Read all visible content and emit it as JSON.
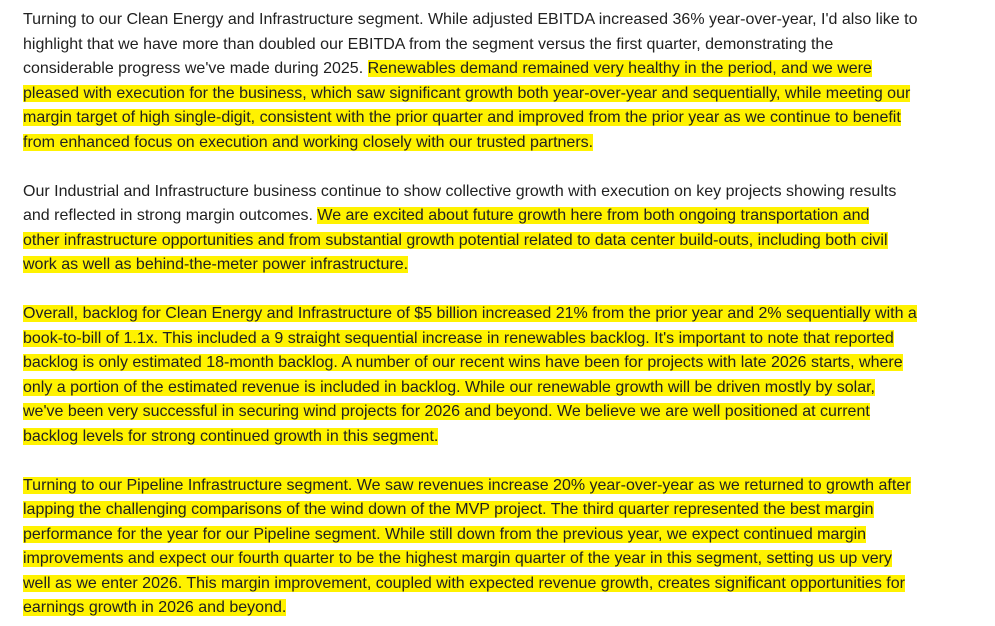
{
  "paragraphs": [
    {
      "lines": [
        [
          {
            "text": "Turning to our Clean Energy and Infrastructure segment. While adjusted EBITDA increased 36% year-over-year, I'd also like to",
            "highlight": false
          }
        ],
        [
          {
            "text": "highlight that we have more than doubled our EBITDA from the segment versus the first quarter, demonstrating the",
            "highlight": false
          }
        ],
        [
          {
            "text": "considerable progress we've made during 2025. ",
            "highlight": false
          },
          {
            "text": "Renewables demand remained very healthy in the period, and we were",
            "highlight": true
          }
        ],
        [
          {
            "text": "pleased with execution for the business, which saw significant growth both year-over-year and sequentially, while meeting our",
            "highlight": true
          }
        ],
        [
          {
            "text": "margin target of high single-digit, consistent with the prior quarter and improved from the prior year as we continue to benefit",
            "highlight": true
          }
        ],
        [
          {
            "text": "from enhanced focus on execution and working closely with our trusted partners.",
            "highlight": true
          }
        ]
      ]
    },
    {
      "lines": [
        [
          {
            "text": "Our Industrial and Infrastructure business continue to show collective growth with execution on key projects showing results",
            "highlight": false
          }
        ],
        [
          {
            "text": "and reflected in strong margin outcomes. ",
            "highlight": false
          },
          {
            "text": "We are excited about future growth here from both ongoing transportation and",
            "highlight": true
          }
        ],
        [
          {
            "text": "other infrastructure opportunities and from substantial growth potential related to data center build-outs, including both civil",
            "highlight": true
          }
        ],
        [
          {
            "text": "work as well as behind-the-meter power infrastructure.",
            "highlight": true
          }
        ]
      ]
    },
    {
      "lines": [
        [
          {
            "text": "Overall, backlog for Clean Energy and Infrastructure of $5 billion increased 21% from the prior year and 2% sequentially with a",
            "highlight": true
          }
        ],
        [
          {
            "text": "book-to-bill of 1.1x. This included a 9 straight sequential increase in renewables backlog. It's important to note that reported",
            "highlight": true
          }
        ],
        [
          {
            "text": "backlog is only estimated 18-month backlog. A number of our recent wins have been for projects with late 2026 starts, where",
            "highlight": true
          }
        ],
        [
          {
            "text": "only a portion of the estimated revenue is included in backlog. While our renewable growth will be driven mostly by solar,",
            "highlight": true
          }
        ],
        [
          {
            "text": "we've been very successful in securing wind projects for 2026 and beyond. We believe we are well positioned at current",
            "highlight": true
          }
        ],
        [
          {
            "text": "backlog levels for strong continued growth in this segment.",
            "highlight": true
          }
        ]
      ]
    },
    {
      "lines": [
        [
          {
            "text": "Turning to our Pipeline Infrastructure segment. We saw revenues increase 20% year-over-year as we returned to growth after",
            "highlight": true
          }
        ],
        [
          {
            "text": "lapping the challenging comparisons of the wind down of the MVP project. The third quarter represented the best margin",
            "highlight": true
          }
        ],
        [
          {
            "text": "performance for the year for our Pipeline segment. While still down from the previous year, we expect continued margin",
            "highlight": true
          }
        ],
        [
          {
            "text": "improvements and expect our fourth quarter to be the highest margin quarter of the year in this segment, setting us up very",
            "highlight": true
          }
        ],
        [
          {
            "text": "well as we enter 2026. This margin improvement, coupled with expected revenue growth, creates significant opportunities for",
            "highlight": true
          }
        ],
        [
          {
            "text": "earnings growth in 2026 and beyond.",
            "highlight": true
          }
        ]
      ]
    }
  ]
}
